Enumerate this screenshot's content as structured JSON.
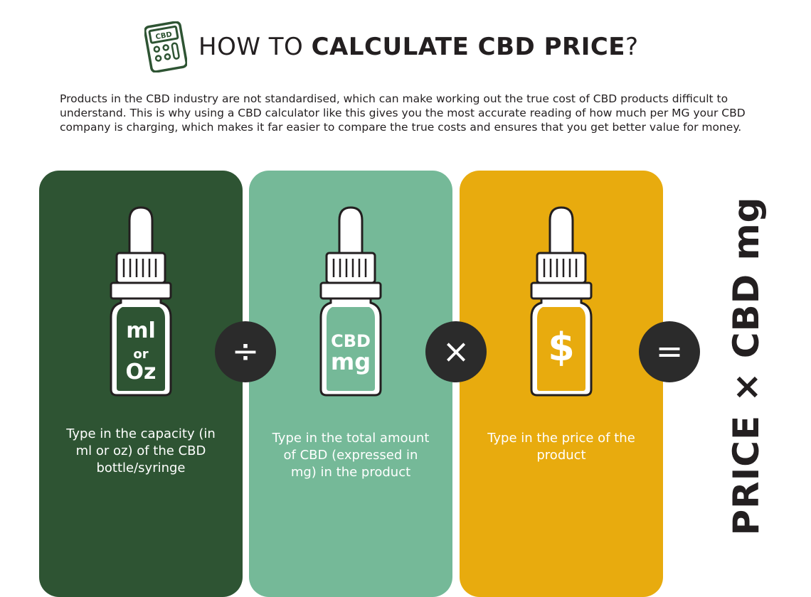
{
  "header": {
    "icon_label": "CBD",
    "title_light": "HOW TO ",
    "title_bold": "CALCULATE CBD PRICE",
    "title_end": "?"
  },
  "intro": "Products in the CBD industry are not standardised, which can make working out the true cost of CBD products difficult to understand. This is why using a CBD calculator like this gives you the most accurate reading of how much per MG your CBD company is charging, which makes it far easier to compare the true costs and ensures that you get better value for money.",
  "panels": [
    {
      "label_top": "ml",
      "label_mid": "or",
      "label_bot": "Oz",
      "text": "Type in the capacity (in ml or oz) of the CBD bottle/syringe",
      "color": "#2e5433"
    },
    {
      "label_top": "CBD",
      "label_bot": "mg",
      "text": "Type in the total amount of CBD (expressed in mg) in the product",
      "color": "#75b998"
    },
    {
      "label_top": "$",
      "text": "Type in the price of the product",
      "color": "#e8ab0e"
    }
  ],
  "operators": [
    "÷",
    "×",
    "="
  ],
  "formula": "PRICE × CBD mg",
  "colors": {
    "dark_green": "#2e5433",
    "mint": "#75b998",
    "gold": "#e8ab0e",
    "operator": "#2b2b2b"
  }
}
